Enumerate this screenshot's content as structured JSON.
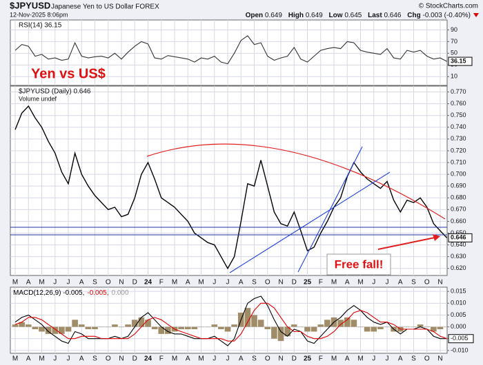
{
  "header": {
    "symbol": "$JPYUSD",
    "name": "Japanese Yen to US Dollar FOREX",
    "date": "12-Nov-2025 8:06pm",
    "source": "© StockCharts.com",
    "quote": [
      {
        "label": "Open",
        "value": "0.649"
      },
      {
        "label": "High",
        "value": "0.649"
      },
      {
        "label": "Low",
        "value": "0.645"
      },
      {
        "label": "Last",
        "value": "0.646"
      },
      {
        "label": "Chg",
        "value": "-0.003 (-0.40%)"
      }
    ]
  },
  "chart_data": [
    {
      "type": "line",
      "title": "RSI(14) 36.15",
      "annotations": [
        "Yen vs US$"
      ],
      "ylim": [
        -5,
        107
      ],
      "yticks": [
        90,
        70,
        50,
        30,
        10
      ],
      "grid": true,
      "series": [
        {
          "name": "RSI(14)",
          "color": "#333333",
          "values": [
            55,
            65,
            62,
            45,
            48,
            40,
            42,
            38,
            40,
            68,
            45,
            42,
            44,
            45,
            42,
            50,
            40,
            52,
            62,
            70,
            66,
            42,
            40,
            46,
            44,
            42,
            40,
            35,
            42,
            40,
            45,
            35,
            32,
            50,
            72,
            80,
            65,
            68,
            45,
            38,
            42,
            45,
            60,
            40,
            35,
            45,
            55,
            58,
            60,
            58,
            70,
            68,
            55,
            52,
            50,
            48,
            58,
            42,
            40,
            55,
            52,
            55,
            45,
            40,
            42,
            36.15
          ]
        }
      ]
    },
    {
      "type": "line",
      "title": "$JPYUSD (Daily) 0.646",
      "subtitle": "Volume undef",
      "annotations": [
        "Free fall!"
      ],
      "categories": [
        "M",
        null,
        "A",
        null,
        "M",
        null,
        "J",
        null,
        "J",
        null,
        "A",
        null,
        "S",
        null,
        "O",
        null,
        "N",
        null,
        "D",
        null,
        "24",
        null,
        "F",
        null,
        "M",
        null,
        "A",
        null,
        "M",
        null,
        "J",
        null,
        "J",
        null,
        "A",
        null,
        "S",
        null,
        "O",
        null,
        "N",
        null,
        "D",
        null,
        "25",
        null,
        "F",
        null,
        "M",
        null,
        "A",
        null,
        "M",
        null,
        "J",
        null,
        "J",
        null,
        "A",
        null,
        "S",
        null,
        "O",
        null,
        "N",
        null
      ],
      "ylim": [
        0.614,
        0.775
      ],
      "yticks": [
        {
          "value": 0.62,
          "label": "0.620"
        },
        {
          "value": 0.63,
          "label": "0.630"
        },
        {
          "value": 0.64,
          "label": "0.640"
        },
        {
          "value": 0.65,
          "label": "0.650"
        },
        {
          "value": 0.66,
          "label": "0.660"
        },
        {
          "value": 0.67,
          "label": "0.670"
        },
        {
          "value": 0.68,
          "label": "0.680"
        },
        {
          "value": 0.69,
          "label": "0.690"
        },
        {
          "value": 0.7,
          "label": "0.700"
        },
        {
          "value": 0.71,
          "label": "0.710"
        },
        {
          "value": 0.72,
          "label": "0.720"
        },
        {
          "value": 0.73,
          "label": "0.730"
        },
        {
          "value": 0.74,
          "label": "0.740"
        },
        {
          "value": 0.75,
          "label": "0.750"
        },
        {
          "value": 0.76,
          "label": "0.760"
        },
        {
          "value": 0.77,
          "label": "0.770"
        }
      ],
      "grid": true,
      "series": [
        {
          "name": "$JPYUSD",
          "color": "#000000",
          "values": [
            0.738,
            0.752,
            0.758,
            0.748,
            0.74,
            0.728,
            0.718,
            0.702,
            0.692,
            0.718,
            0.7,
            0.69,
            0.682,
            0.676,
            0.67,
            0.672,
            0.664,
            0.666,
            0.68,
            0.7,
            0.71,
            0.696,
            0.68,
            0.676,
            0.672,
            0.666,
            0.66,
            0.65,
            0.646,
            0.642,
            0.64,
            0.63,
            0.62,
            0.63,
            0.66,
            0.692,
            0.69,
            0.712,
            0.69,
            0.668,
            0.658,
            0.656,
            0.668,
            0.652,
            0.635,
            0.638,
            0.65,
            0.66,
            0.672,
            0.68,
            0.698,
            0.71,
            0.702,
            0.696,
            0.692,
            0.688,
            0.694,
            0.678,
            0.668,
            0.678,
            0.676,
            0.68,
            0.672,
            0.658,
            0.652,
            0.646
          ]
        }
      ]
    },
    {
      "type": "line",
      "title_parts": [
        "MACD(12,26,9) -0.005,",
        "-0.005,",
        "0.000"
      ],
      "categories": [
        "M",
        null,
        "A",
        null,
        "M",
        null,
        "J",
        null,
        "J",
        null,
        "A",
        null,
        "S",
        null,
        "O",
        null,
        "N",
        null,
        "D",
        null,
        "24",
        null,
        "F",
        null,
        "M",
        null,
        "A",
        null,
        "M",
        null,
        "J",
        null,
        "J",
        null,
        "A",
        null,
        "S",
        null,
        "O",
        null,
        "N",
        null,
        "D",
        null,
        "25",
        null,
        "F",
        null,
        "M",
        null,
        "A",
        null,
        "M",
        null,
        "J",
        null,
        "J",
        null,
        "A",
        null,
        "S",
        null,
        "O",
        null,
        "N",
        null
      ],
      "ylim": [
        -0.0112,
        0.0168
      ],
      "yticks": [
        0.015,
        {
          "value": 0.01,
          "label": "0.010"
        },
        0.005,
        {
          "value": 0,
          "label": "0.000"
        },
        -0.005,
        {
          "value": -0.01,
          "label": "-0.010"
        }
      ],
      "grid": true,
      "series": [
        {
          "name": "Histogram",
          "type": "bar",
          "color": "#a08c66",
          "values": [
            0.001,
            0.002,
            0.001,
            -0.001,
            -0.002,
            -0.003,
            -0.003,
            -0.003,
            -0.002,
            0.003,
            0.001,
            -0.001,
            -0.001,
            0,
            0,
            0.001,
            0,
            0.001,
            0.003,
            0.004,
            0.003,
            -0.001,
            -0.003,
            -0.003,
            -0.002,
            -0.001,
            -0.001,
            -0.001,
            0,
            0,
            0.001,
            -0.001,
            -0.002,
            0.001,
            0.006,
            0.008,
            0.005,
            0.003,
            -0.001,
            -0.005,
            -0.006,
            -0.004,
            0.001,
            0,
            -0.002,
            -0.002,
            0.001,
            0.003,
            0.004,
            0.003,
            0.004,
            0.003,
            0,
            -0.002,
            -0.002,
            -0.001,
            0,
            -0.002,
            -0.002,
            0,
            0,
            0.001,
            0,
            -0.002,
            -0.001,
            0
          ]
        },
        {
          "name": "MACD",
          "type": "line",
          "color": "#000000",
          "values": [
            0.002,
            0.004,
            0.005,
            0.003,
            0.001,
            -0.002,
            -0.004,
            -0.006,
            -0.007,
            -0.002,
            -0.003,
            -0.005,
            -0.005,
            -0.005,
            -0.005,
            -0.004,
            -0.005,
            -0.004,
            0,
            0.004,
            0.006,
            0.003,
            0,
            -0.002,
            -0.003,
            -0.003,
            -0.004,
            -0.005,
            -0.005,
            -0.005,
            -0.004,
            -0.006,
            -0.008,
            -0.005,
            0.003,
            0.01,
            0.012,
            0.013,
            0.009,
            0.003,
            -0.002,
            -0.004,
            -0.001,
            -0.002,
            -0.006,
            -0.007,
            -0.004,
            -0.001,
            0.002,
            0.004,
            0.007,
            0.009,
            0.007,
            0.004,
            0.002,
            0.001,
            0.002,
            -0.001,
            -0.003,
            -0.001,
            -0.001,
            0,
            -0.001,
            -0.004,
            -0.005,
            -0.005
          ]
        },
        {
          "name": "Signal",
          "type": "line",
          "color": "#e00000",
          "values": [
            0.001,
            0.002,
            0.004,
            0.004,
            0.003,
            0.001,
            -0.001,
            -0.003,
            -0.005,
            -0.005,
            -0.004,
            -0.004,
            -0.004,
            -0.005,
            -0.005,
            -0.005,
            -0.005,
            -0.005,
            -0.003,
            0,
            0.003,
            0.004,
            0.003,
            0.001,
            -0.001,
            -0.002,
            -0.003,
            -0.004,
            -0.005,
            -0.005,
            -0.005,
            -0.005,
            -0.006,
            -0.006,
            -0.003,
            0.002,
            0.007,
            0.01,
            0.01,
            0.008,
            0.004,
            0,
            -0.002,
            -0.002,
            -0.004,
            -0.005,
            -0.005,
            -0.004,
            -0.002,
            0.001,
            0.003,
            0.006,
            0.007,
            0.006,
            0.004,
            0.002,
            0.002,
            0.001,
            -0.001,
            -0.001,
            -0.001,
            -0.001,
            -0.001,
            -0.002,
            -0.004,
            -0.005
          ]
        }
      ]
    }
  ]
}
